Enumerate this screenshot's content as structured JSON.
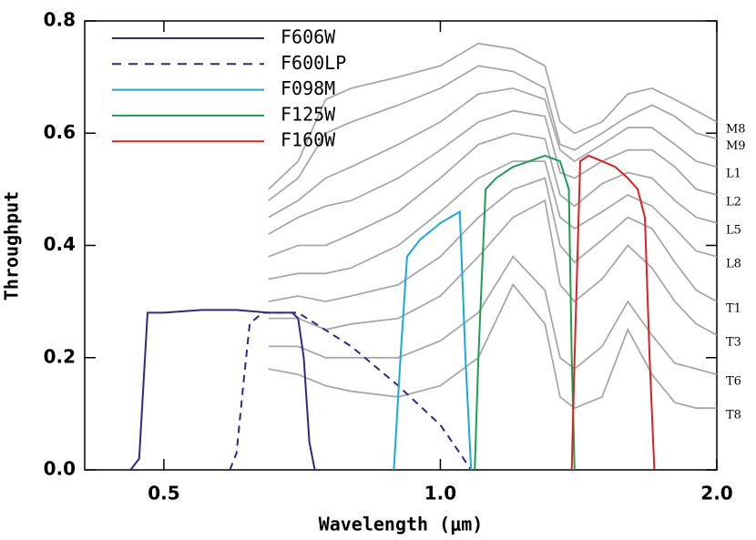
{
  "chart_data": {
    "type": "line",
    "x_label": "Wavelength (μm)",
    "y_label": "Throughput",
    "log_x": true,
    "xlim": [
      0.41,
      2.0
    ],
    "xticks": [
      0.5,
      {
        "value": 1.0,
        "label": "1.0"
      },
      {
        "value": 2.0,
        "label": "2.0"
      }
    ],
    "ylim": [
      0,
      0.8
    ],
    "yticks": [
      {
        "value": 0,
        "label": "0.0"
      },
      0.2,
      0.4,
      0.6,
      0.8
    ],
    "legend": "upper left",
    "series": [
      {
        "name": "F606W",
        "color": "#2b2b86",
        "dashed": false,
        "x": [
          0.46,
          0.47,
          0.475,
          0.48,
          0.5,
          0.55,
          0.6,
          0.65,
          0.69,
          0.7,
          0.71,
          0.72,
          0.73
        ],
        "values": [
          0,
          0.02,
          0.15,
          0.28,
          0.28,
          0.285,
          0.285,
          0.28,
          0.28,
          0.27,
          0.2,
          0.05,
          0
        ]
      },
      {
        "name": "F600LP",
        "color": "#2b2b86",
        "dashed": true,
        "x": [
          0.59,
          0.6,
          0.61,
          0.62,
          0.64,
          0.7,
          0.8,
          0.9,
          1.0,
          1.05,
          1.08
        ],
        "values": [
          0,
          0.03,
          0.15,
          0.26,
          0.28,
          0.28,
          0.22,
          0.15,
          0.08,
          0.03,
          0
        ]
      },
      {
        "name": "F098M",
        "color": "#1aa8e0",
        "dashed": false,
        "x": [
          0.89,
          0.905,
          0.92,
          0.95,
          1.0,
          1.05,
          1.065,
          1.08
        ],
        "values": [
          0,
          0.2,
          0.38,
          0.41,
          0.44,
          0.46,
          0.2,
          0
        ]
      },
      {
        "name": "F125W",
        "color": "#1a9e50",
        "dashed": false,
        "x": [
          1.09,
          1.1,
          1.12,
          1.15,
          1.2,
          1.25,
          1.3,
          1.35,
          1.38,
          1.39,
          1.4
        ],
        "values": [
          0,
          0.2,
          0.5,
          0.52,
          0.54,
          0.55,
          0.56,
          0.55,
          0.5,
          0.2,
          0
        ]
      },
      {
        "name": "F160W",
        "color": "#e02020",
        "dashed": false,
        "x": [
          1.39,
          1.4,
          1.42,
          1.45,
          1.5,
          1.55,
          1.6,
          1.64,
          1.67,
          1.69,
          1.71
        ],
        "values": [
          0,
          0.2,
          0.55,
          0.56,
          0.55,
          0.54,
          0.52,
          0.5,
          0.45,
          0.2,
          0
        ]
      }
    ],
    "spectra_color": "#a8a8a8",
    "spectra_x": [
      0.65,
      0.7,
      0.75,
      0.8,
      0.9,
      1.0,
      1.1,
      1.2,
      1.3,
      1.35,
      1.4,
      1.5,
      1.6,
      1.7,
      1.8,
      1.9,
      2.0
    ],
    "spectra": [
      {
        "name": "M8",
        "values": [
          0.5,
          0.55,
          0.66,
          0.68,
          0.7,
          0.72,
          0.76,
          0.75,
          0.72,
          0.62,
          0.6,
          0.62,
          0.67,
          0.68,
          0.66,
          0.64,
          0.62
        ]
      },
      {
        "name": "M9",
        "values": [
          0.48,
          0.52,
          0.6,
          0.62,
          0.65,
          0.68,
          0.72,
          0.71,
          0.68,
          0.58,
          0.57,
          0.6,
          0.63,
          0.65,
          0.63,
          0.6,
          0.59
        ]
      },
      {
        "name": "L1",
        "values": [
          0.45,
          0.48,
          0.52,
          0.54,
          0.58,
          0.62,
          0.67,
          0.68,
          0.66,
          0.57,
          0.55,
          0.58,
          0.61,
          0.61,
          0.58,
          0.55,
          0.54
        ]
      },
      {
        "name": "L2",
        "values": [
          0.42,
          0.45,
          0.47,
          0.48,
          0.52,
          0.57,
          0.62,
          0.64,
          0.63,
          0.53,
          0.52,
          0.55,
          0.57,
          0.57,
          0.54,
          0.5,
          0.49
        ]
      },
      {
        "name": "L5",
        "values": [
          0.38,
          0.4,
          0.4,
          0.42,
          0.46,
          0.52,
          0.58,
          0.6,
          0.59,
          0.49,
          0.47,
          0.51,
          0.53,
          0.52,
          0.48,
          0.45,
          0.44
        ]
      },
      {
        "name": "L8",
        "values": [
          0.34,
          0.35,
          0.35,
          0.36,
          0.4,
          0.46,
          0.52,
          0.55,
          0.55,
          0.45,
          0.43,
          0.46,
          0.49,
          0.47,
          0.43,
          0.39,
          0.38
        ]
      },
      {
        "name": "T1",
        "values": [
          0.3,
          0.31,
          0.3,
          0.31,
          0.33,
          0.38,
          0.45,
          0.5,
          0.52,
          0.4,
          0.37,
          0.41,
          0.45,
          0.43,
          0.37,
          0.32,
          0.3
        ]
      },
      {
        "name": "T3",
        "values": [
          0.27,
          0.27,
          0.25,
          0.26,
          0.27,
          0.31,
          0.38,
          0.45,
          0.48,
          0.33,
          0.3,
          0.34,
          0.4,
          0.36,
          0.3,
          0.26,
          0.24
        ]
      },
      {
        "name": "T6",
        "values": [
          0.22,
          0.22,
          0.2,
          0.2,
          0.2,
          0.23,
          0.28,
          0.38,
          0.32,
          0.2,
          0.18,
          0.22,
          0.3,
          0.24,
          0.19,
          0.18,
          0.17
        ]
      },
      {
        "name": "T8",
        "values": [
          0.18,
          0.17,
          0.15,
          0.14,
          0.13,
          0.15,
          0.2,
          0.33,
          0.26,
          0.13,
          0.11,
          0.13,
          0.25,
          0.17,
          0.12,
          0.11,
          0.11
        ]
      }
    ]
  }
}
